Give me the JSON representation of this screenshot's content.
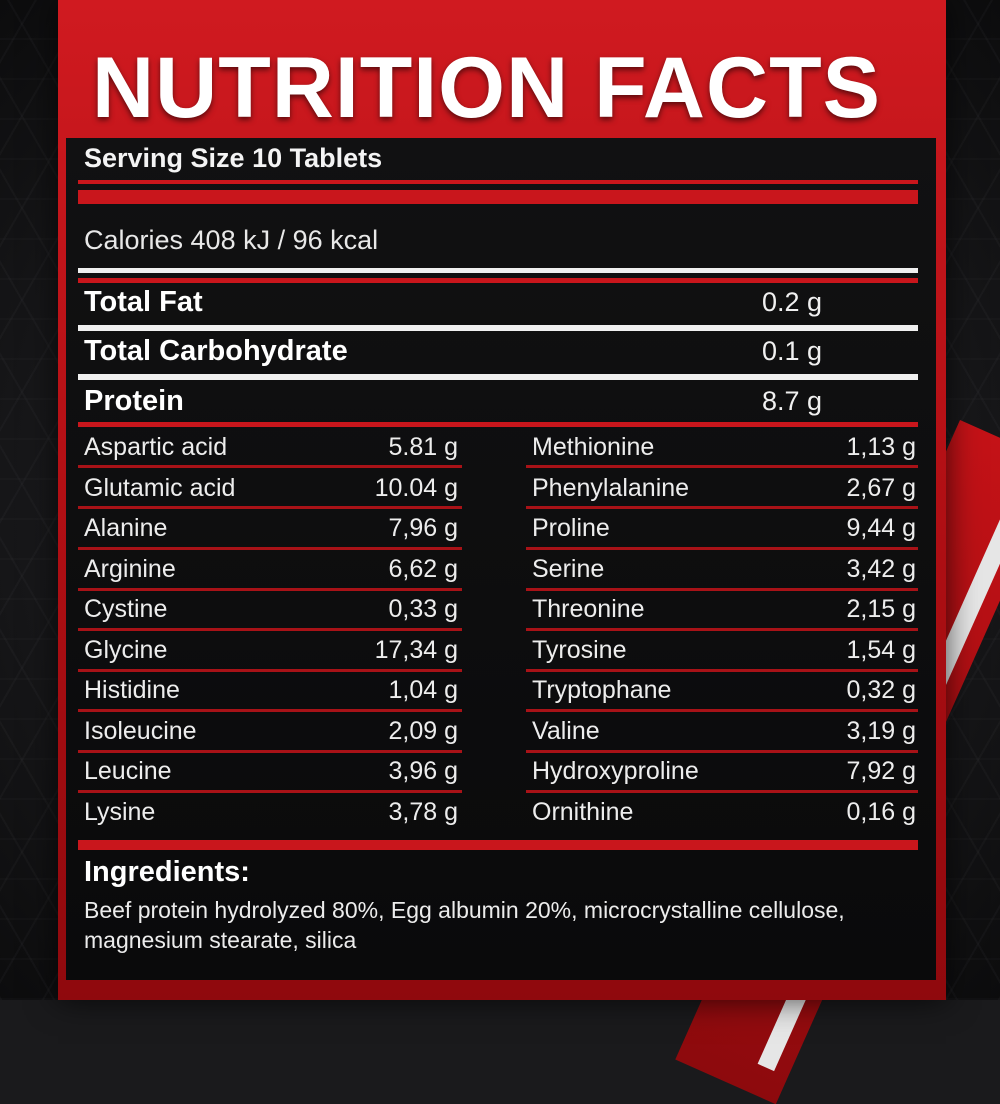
{
  "colors": {
    "accent_red": "#c9161c",
    "panel_black": "#0a0a0b",
    "text": "#f2f2f2"
  },
  "label": {
    "title": "NUTRITION FACTS",
    "serving_size": "Serving Size 10 Tablets",
    "calories": "Calories 408 kJ / 96 kcal",
    "macros": [
      {
        "name": "Total Fat",
        "value": "0.2 g"
      },
      {
        "name": "Total Carbohydrate",
        "value": "0.1 g"
      },
      {
        "name": "Protein",
        "value": "8.7 g"
      }
    ],
    "amino_left": [
      {
        "name": "Aspartic acid",
        "value": "5.81 g"
      },
      {
        "name": "Glutamic acid",
        "value": "10.04 g"
      },
      {
        "name": "Alanine",
        "value": "7,96 g"
      },
      {
        "name": "Arginine",
        "value": "6,62 g"
      },
      {
        "name": "Cystine",
        "value": "0,33 g"
      },
      {
        "name": "Glycine",
        "value": "17,34 g"
      },
      {
        "name": "Histidine",
        "value": "1,04 g"
      },
      {
        "name": "Isoleucine",
        "value": "2,09 g"
      },
      {
        "name": "Leucine",
        "value": "3,96 g"
      },
      {
        "name": "Lysine",
        "value": "3,78 g"
      }
    ],
    "amino_right": [
      {
        "name": "Methionine",
        "value": "1,13 g"
      },
      {
        "name": "Phenylalanine",
        "value": "2,67 g"
      },
      {
        "name": "Proline",
        "value": "9,44 g"
      },
      {
        "name": "Serine",
        "value": "3,42 g"
      },
      {
        "name": "Threonine",
        "value": "2,15 g"
      },
      {
        "name": "Tyrosine",
        "value": "1,54 g"
      },
      {
        "name": "Tryptophane",
        "value": "0,32 g"
      },
      {
        "name": "Valine",
        "value": "3,19 g"
      },
      {
        "name": "Hydroxyproline",
        "value": "7,92 g"
      },
      {
        "name": "Ornithine",
        "value": "0,16 g"
      }
    ],
    "ingredients_title": "Ingredients:",
    "ingredients_text": "Beef protein hydrolyzed 80%, Egg albumin 20%, microcrystalline cellulose, magnesium stearate, silica"
  }
}
